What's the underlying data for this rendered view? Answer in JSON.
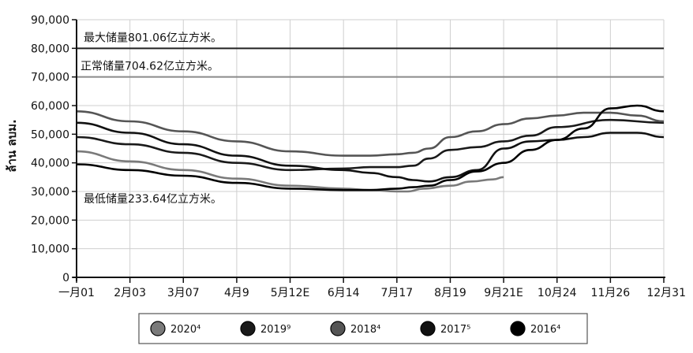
{
  "chart_data": {
    "type": "line",
    "title": "",
    "ylabel": "ล้าน ลบม.",
    "xlabel": "",
    "ylim": [
      0,
      90000
    ],
    "yticks": [
      0,
      10000,
      20000,
      30000,
      40000,
      50000,
      60000,
      70000,
      80000,
      90000
    ],
    "ytick_labels": [
      "0",
      "10,000",
      "20,000",
      "30,000",
      "40,000",
      "50,000",
      "60,000",
      "70,000",
      "80,000",
      "90,000"
    ],
    "xticks": [
      "一月01",
      "2月03",
      "3月07",
      "4月9",
      "5月12E",
      "6月14",
      "7月17",
      "8月19",
      "9月21E",
      "10月24",
      "11月26",
      "12月31"
    ],
    "reference_lines": [
      {
        "label": "最大储量801.06亿立方米。",
        "value": 80000,
        "color": "#222222"
      },
      {
        "label": "正常储量704.62亿立方米。",
        "value": 70000,
        "color": "#8a8a8a"
      }
    ],
    "min_annotation": {
      "label": "最低储量233.64亿立方米。",
      "value": 29000
    },
    "grid": true,
    "legend_position": "bottom",
    "series": [
      {
        "name": "2020⁴",
        "color": "#7a7a7a",
        "x": [
          0,
          1,
          2,
          3,
          4,
          5,
          5.5,
          6,
          6.2,
          6.5,
          7,
          7.4,
          7.8,
          8.0
        ],
        "values": [
          44000,
          40500,
          37500,
          34500,
          32000,
          31000,
          30500,
          30000,
          30000,
          31000,
          32000,
          33500,
          34200,
          35000
        ]
      },
      {
        "name": "2019⁹",
        "color": "#1a1a1a",
        "x": [
          0,
          1,
          2,
          3,
          4,
          5,
          5.5,
          6,
          6.3,
          6.6,
          7,
          7.5,
          8,
          8.5,
          9,
          10,
          11
        ],
        "values": [
          49000,
          46500,
          43500,
          40000,
          37500,
          38000,
          38500,
          38500,
          39000,
          41500,
          44500,
          45500,
          47500,
          49500,
          52500,
          55000,
          54000
        ]
      },
      {
        "name": "2018⁴",
        "color": "#555555",
        "x": [
          0,
          1,
          2,
          3,
          4,
          5,
          5.5,
          6,
          6.3,
          6.6,
          7,
          7.5,
          8,
          8.5,
          9,
          9.5,
          10,
          10.5,
          11
        ],
        "values": [
          58000,
          54500,
          51000,
          47500,
          44000,
          42500,
          42500,
          43000,
          43500,
          45000,
          49000,
          51000,
          53500,
          55500,
          56500,
          57500,
          57500,
          56500,
          54500
        ]
      },
      {
        "name": "2017⁵",
        "color": "#111111",
        "x": [
          0,
          1,
          2,
          3,
          4,
          5,
          5.5,
          6,
          6.3,
          6.6,
          7,
          7.5,
          8,
          8.5,
          9,
          9.5,
          10,
          10.5,
          11
        ],
        "values": [
          54000,
          50500,
          46500,
          42500,
          39000,
          37500,
          36500,
          35000,
          34000,
          33500,
          35000,
          37500,
          45000,
          47500,
          48000,
          49000,
          50500,
          50500,
          49000
        ]
      },
      {
        "name": "2016⁴",
        "color": "#000000",
        "x": [
          0,
          1,
          2,
          3,
          4,
          5,
          5.5,
          6,
          6.3,
          6.6,
          7,
          7.5,
          8,
          8.5,
          9,
          9.5,
          10,
          10.5,
          11
        ],
        "values": [
          39500,
          37500,
          35500,
          33000,
          31000,
          30500,
          30500,
          31000,
          31500,
          32000,
          34000,
          37000,
          40000,
          44500,
          48000,
          52000,
          59000,
          60000,
          58000
        ]
      }
    ]
  }
}
